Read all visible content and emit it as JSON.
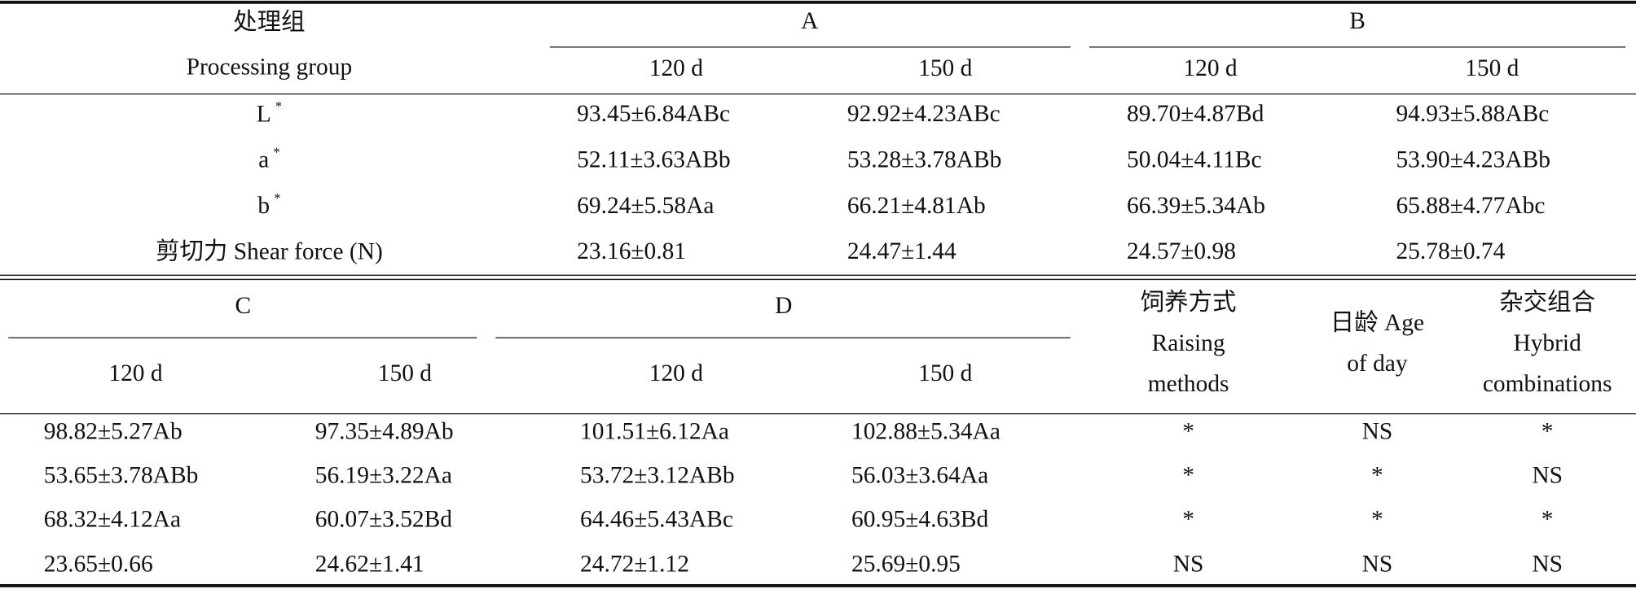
{
  "table1": {
    "header": {
      "group_zh": "处理组",
      "group_en": "Processing group",
      "groups": [
        {
          "name": "A",
          "days": [
            "120 d",
            "150 d"
          ]
        },
        {
          "name": "B",
          "days": [
            "120 d",
            "150 d"
          ]
        }
      ]
    },
    "rows": [
      {
        "label": "L",
        "sup": "*",
        "values": [
          "93.45±6.84ABc",
          "92.92±4.23ABc",
          "89.70±4.87Bd",
          "94.93±5.88ABc"
        ]
      },
      {
        "label": "a",
        "sup": "*",
        "values": [
          "52.11±3.63ABb",
          "53.28±3.78ABb",
          "50.04±4.11Bc",
          "53.90±4.23ABb"
        ]
      },
      {
        "label": "b",
        "sup": "*",
        "values": [
          "69.24±5.58Aa",
          "66.21±4.81Ab",
          "66.39±5.34Ab",
          "65.88±4.77Abc"
        ]
      },
      {
        "label": "剪切力 Shear force (N)",
        "values": [
          "23.16±0.81",
          "24.47±1.44",
          "24.57±0.98",
          "25.78±0.74"
        ]
      }
    ]
  },
  "table2": {
    "header": {
      "groups": [
        {
          "name": "C",
          "days": [
            "120 d",
            "150 d"
          ]
        },
        {
          "name": "D",
          "days": [
            "120 d",
            "150 d"
          ]
        }
      ],
      "factors": [
        {
          "lines": [
            "饲养方式",
            "Raising",
            "methods"
          ]
        },
        {
          "lines": [
            "日龄 Age",
            "of day"
          ]
        },
        {
          "lines": [
            "杂交组合",
            "Hybrid",
            "combinations"
          ]
        }
      ]
    },
    "rows": [
      {
        "values": [
          "98.82±5.27Ab",
          "97.35±4.89Ab",
          "101.51±6.12Aa",
          "102.88±5.34Aa"
        ],
        "sig": [
          "*",
          "NS",
          "*"
        ]
      },
      {
        "values": [
          "53.65±3.78ABb",
          "56.19±3.22Aa",
          "53.72±3.12ABb",
          "56.03±3.64Aa"
        ],
        "sig": [
          "*",
          "*",
          "NS"
        ]
      },
      {
        "values": [
          "68.32±4.12Aa",
          "60.07±3.52Bd",
          "64.46±5.43ABc",
          "60.95±4.63Bd"
        ],
        "sig": [
          "*",
          "*",
          "*"
        ]
      },
      {
        "values": [
          "23.65±0.66",
          "24.62±1.41",
          "24.72±1.12",
          "25.69±0.95"
        ],
        "sig": [
          "NS",
          "NS",
          "NS"
        ]
      }
    ]
  }
}
